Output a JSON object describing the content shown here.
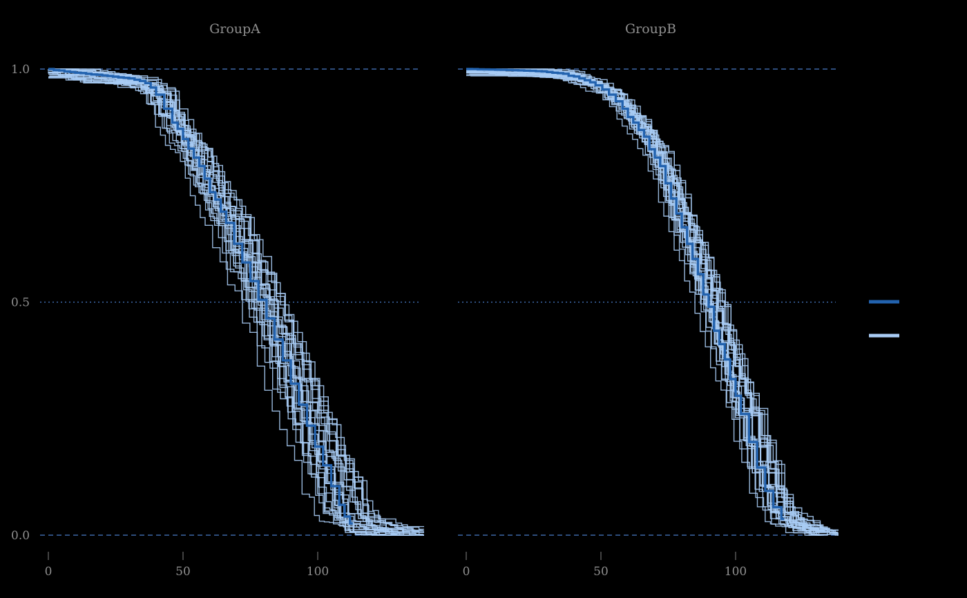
{
  "figure": {
    "background": "#000000",
    "text_color": "#8f8f8f",
    "grid_color": "#4a7cc9",
    "estimate_color": "#2262ae",
    "bootstrap_color": "#a9ccf5"
  },
  "legend": {
    "items": [
      {
        "name": "estimate",
        "swatch_color": "#2262ae",
        "label": ""
      },
      {
        "name": "bootstrap",
        "swatch_color": "#a9ccf5",
        "label": ""
      }
    ]
  },
  "chart_data": {
    "type": "line",
    "subtype": "kaplan-meier-survival-step",
    "title": "",
    "xlabel": "",
    "ylabel": "",
    "xlim": [
      0,
      138
    ],
    "ylim": [
      0,
      1
    ],
    "grid": "horizontal-dashed",
    "legend_position": "right",
    "x_ticks": [
      {
        "value": 0,
        "label": "0"
      },
      {
        "value": 50,
        "label": "50"
      },
      {
        "value": 100,
        "label": "100"
      }
    ],
    "y_ticks": [
      {
        "value": 1.0,
        "label": "1.0"
      },
      {
        "value": 0.5,
        "label": "0.5"
      },
      {
        "value": 0.0,
        "label": "0.0"
      }
    ],
    "gridlines": [
      {
        "y": 1.0,
        "style": "dashed"
      },
      {
        "y": 0.5,
        "style": "dotted"
      },
      {
        "y": 0.0,
        "style": "dashed"
      }
    ],
    "panels": [
      {
        "title": "GroupA",
        "estimate": [
          [
            0,
            1.0
          ],
          [
            6,
            0.995
          ],
          [
            14,
            0.99
          ],
          [
            22,
            0.985
          ],
          [
            30,
            0.98
          ],
          [
            36,
            0.97
          ],
          [
            40,
            0.945
          ],
          [
            43,
            0.915
          ],
          [
            46,
            0.885
          ],
          [
            50,
            0.85
          ],
          [
            54,
            0.81
          ],
          [
            58,
            0.765
          ],
          [
            62,
            0.72
          ],
          [
            66,
            0.67
          ],
          [
            69,
            0.625
          ],
          [
            72,
            0.585
          ],
          [
            75,
            0.545
          ],
          [
            78,
            0.505
          ],
          [
            81,
            0.465
          ],
          [
            84,
            0.42
          ],
          [
            87,
            0.375
          ],
          [
            90,
            0.325
          ],
          [
            93,
            0.28
          ],
          [
            96,
            0.235
          ],
          [
            99,
            0.19
          ],
          [
            102,
            0.15
          ],
          [
            105,
            0.105
          ],
          [
            108,
            0.065
          ],
          [
            110,
            0.04
          ],
          [
            112,
            0.025
          ]
        ],
        "bootstrap": {
          "count": 28,
          "time_scale_jitter": 0.08,
          "time_shift_jitter": 3,
          "value_jitter": 0.02,
          "seed": 7,
          "tail": [
            [
              116,
              0.02
            ],
            [
              122,
              0.012
            ],
            [
              128,
              0.008
            ],
            [
              133,
              0.004
            ]
          ]
        }
      },
      {
        "title": "GroupB",
        "estimate": [
          [
            0,
            1.0
          ],
          [
            15,
            0.998
          ],
          [
            28,
            0.995
          ],
          [
            36,
            0.99
          ],
          [
            42,
            0.98
          ],
          [
            48,
            0.965
          ],
          [
            53,
            0.945
          ],
          [
            58,
            0.915
          ],
          [
            62,
            0.885
          ],
          [
            66,
            0.855
          ],
          [
            70,
            0.81
          ],
          [
            74,
            0.755
          ],
          [
            78,
            0.69
          ],
          [
            82,
            0.625
          ],
          [
            86,
            0.56
          ],
          [
            90,
            0.49
          ],
          [
            94,
            0.41
          ],
          [
            98,
            0.335
          ],
          [
            102,
            0.26
          ],
          [
            105,
            0.2
          ],
          [
            108,
            0.145
          ],
          [
            111,
            0.095
          ],
          [
            114,
            0.06
          ],
          [
            117,
            0.035
          ]
        ],
        "bootstrap": {
          "count": 28,
          "time_scale_jitter": 0.06,
          "time_shift_jitter": 2,
          "value_jitter": 0.015,
          "seed": 21,
          "tail": [
            [
              121,
              0.02
            ],
            [
              126,
              0.012
            ],
            [
              132,
              0.005
            ]
          ]
        }
      }
    ]
  }
}
